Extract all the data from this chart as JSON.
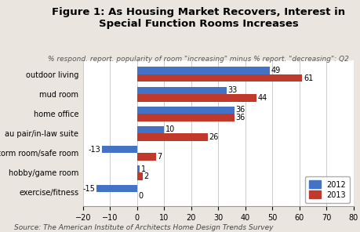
{
  "title": "Figure 1: As Housing Market Recovers, Interest in\nSpecial Function Rooms Increases",
  "subtitle": "% respond. report. popularity of room \"increasing\" minus % report. \"decreasing\": Q2",
  "source": "Source: The American Institute of Architects Home Design Trends Survey",
  "categories": [
    "outdoor living",
    "mud room",
    "home office",
    "au pair/in-law suite",
    "storm room/safe room",
    "hobby/game room",
    "exercise/fitness"
  ],
  "values_2012": [
    49,
    33,
    36,
    10,
    -13,
    1,
    -15
  ],
  "values_2013": [
    61,
    44,
    36,
    26,
    7,
    2,
    0
  ],
  "color_2012": "#4472C4",
  "color_2013": "#C0392B",
  "xlim": [
    -20,
    80
  ],
  "xticks": [
    -20,
    -10,
    0,
    10,
    20,
    30,
    40,
    50,
    60,
    70,
    80
  ],
  "fig_bg_color": "#EAE6DF",
  "plot_bg_color": "#FFFFFF",
  "bar_height": 0.38,
  "title_fontsize": 9.5,
  "subtitle_fontsize": 6.5,
  "label_fontsize": 7,
  "tick_fontsize": 7,
  "source_fontsize": 6.5,
  "category_fontsize": 7
}
